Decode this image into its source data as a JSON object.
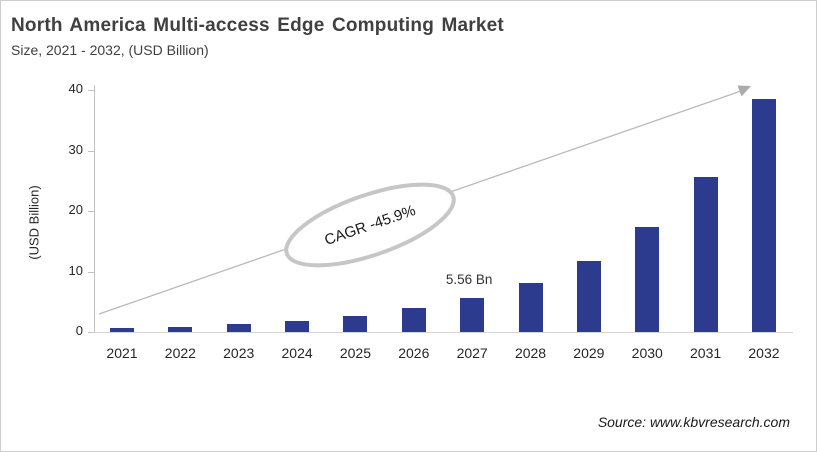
{
  "chart_data": {
    "type": "bar",
    "title": "North America Multi-access Edge Computing Market",
    "subtitle": "Size, 2021 - 2032, (USD Billion)",
    "xlabel": "",
    "ylabel": "(USD Billion)",
    "categories": [
      "2021",
      "2022",
      "2023",
      "2024",
      "2025",
      "2026",
      "2027",
      "2028",
      "2029",
      "2030",
      "2031",
      "2032"
    ],
    "values": [
      0.6,
      0.9,
      1.3,
      1.8,
      2.6,
      3.9,
      5.56,
      8.1,
      11.8,
      17.3,
      25.7,
      38.5
    ],
    "ylim": [
      0,
      40
    ],
    "yticks": [
      0,
      10,
      20,
      30,
      40
    ],
    "grid": false,
    "legend": "none",
    "bar_color": "#2d3b8e",
    "annotation": {
      "category": "2027",
      "text": "5.56 Bn"
    },
    "cagr_label": "CAGR -45.9%",
    "trend_arrow": true
  },
  "footer": {
    "source": "Source: www.kbvresearch.com"
  }
}
